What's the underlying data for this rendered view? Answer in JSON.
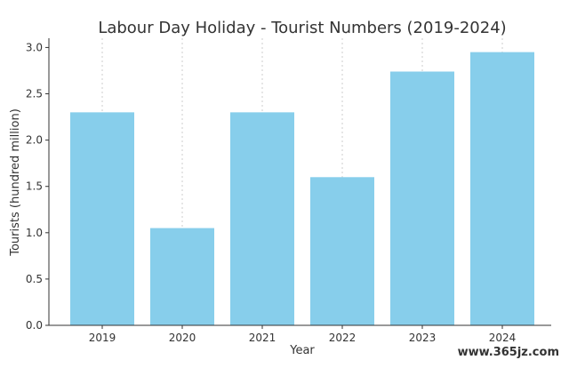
{
  "chart_data": {
    "type": "bar",
    "title": "Labour Day Holiday - Tourist Numbers (2019-2024)",
    "xlabel": "Year",
    "ylabel": "Tourists (hundred million)",
    "categories": [
      "2019",
      "2020",
      "2021",
      "2022",
      "2023",
      "2024"
    ],
    "values": [
      2.3,
      1.05,
      2.3,
      1.6,
      2.74,
      2.95
    ],
    "ylim": [
      0,
      3.1
    ],
    "yticks": [
      "0.0",
      "0.5",
      "1.0",
      "1.5",
      "2.0",
      "2.5",
      "3.0"
    ],
    "ytick_values": [
      0,
      0.5,
      1.0,
      1.5,
      2.0,
      2.5,
      3.0
    ],
    "grid": "vertical",
    "bar_color": "#87CEEB",
    "grid_color": "#cccccc"
  },
  "watermark": "www.365jz.com"
}
